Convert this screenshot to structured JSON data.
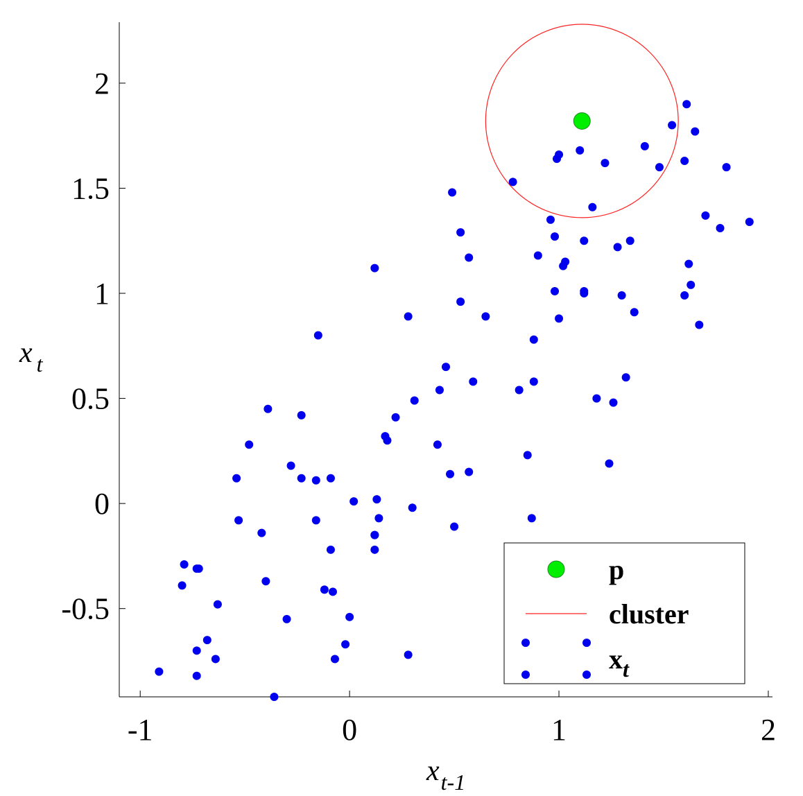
{
  "chart_data": {
    "type": "scatter",
    "title": "",
    "xlabel": "x",
    "xlabel_sub": "t-1",
    "ylabel": "x",
    "ylabel_sub": "t",
    "xlim": [
      -1.1,
      2.02
    ],
    "ylim": [
      -0.92,
      2.29
    ],
    "xticks": [
      -1,
      0,
      1,
      2
    ],
    "xtick_labels": [
      "-1",
      "0",
      "1",
      "2"
    ],
    "yticks": [
      -0.5,
      0,
      0.5,
      1,
      1.5,
      2
    ],
    "ytick_labels": [
      "-0.5",
      "0",
      "0.5",
      "1",
      "1.5",
      "2"
    ],
    "grid": false,
    "legend_position": "bottom-right",
    "colors": {
      "xt": "#0000ee",
      "p": "#00ee00",
      "cluster": "#ff2222"
    },
    "legend": [
      {
        "key": "p",
        "label": "p",
        "marker": "green-circle"
      },
      {
        "key": "cluster",
        "label": "cluster",
        "marker": "red-line"
      },
      {
        "key": "xt",
        "label": "x",
        "sub": "t",
        "marker": "blue-dots"
      }
    ],
    "p": {
      "x": 1.11,
      "y": 1.82
    },
    "cluster": {
      "cx": 1.11,
      "cy": 1.82,
      "r": 0.46
    },
    "series": [
      {
        "key": "xt",
        "x": [
          -0.91,
          -0.73,
          -0.73,
          -0.68,
          -0.73,
          -0.64,
          -0.63,
          -0.79,
          -0.8,
          -0.72,
          -0.54,
          -0.53,
          -0.48,
          -0.42,
          -0.4,
          -0.39,
          -0.36,
          -0.3,
          -0.28,
          -0.23,
          -0.23,
          -0.16,
          -0.16,
          -0.15,
          -0.12,
          -0.09,
          -0.09,
          -0.08,
          -0.07,
          -0.02,
          0.0,
          0.02,
          0.12,
          0.12,
          0.12,
          0.13,
          0.14,
          0.12,
          0.17,
          0.18,
          0.22,
          0.28,
          0.28,
          0.3,
          0.31,
          0.42,
          0.43,
          0.46,
          0.48,
          0.49,
          0.5,
          0.53,
          0.53,
          0.57,
          0.57,
          0.59,
          0.65,
          0.78,
          0.81,
          0.85,
          0.87,
          0.88,
          0.88,
          0.9,
          0.96,
          0.98,
          0.98,
          1.0,
          1.0,
          1.02,
          1.03,
          1.1,
          1.12,
          1.12,
          1.12,
          1.16,
          1.18,
          1.24,
          1.26,
          1.28,
          1.3,
          1.32,
          1.34,
          1.36,
          1.41,
          1.48,
          1.54,
          1.6,
          1.6,
          1.61,
          1.62,
          1.63,
          1.65,
          1.67,
          1.7,
          1.77,
          1.8,
          1.91,
          0.99,
          1.22
        ],
        "y": [
          -0.8,
          -0.82,
          -0.7,
          -0.65,
          -0.31,
          -0.74,
          -0.48,
          -0.29,
          -0.39,
          -0.31,
          0.12,
          -0.08,
          0.28,
          -0.14,
          -0.37,
          0.45,
          -0.92,
          -0.55,
          0.18,
          0.12,
          0.42,
          0.11,
          -0.08,
          0.8,
          -0.41,
          -0.22,
          0.12,
          -0.42,
          -0.74,
          -0.67,
          -0.54,
          0.01,
          1.12,
          -0.22,
          -0.15,
          0.02,
          -0.07,
          -0.15,
          0.32,
          0.3,
          0.41,
          0.89,
          -0.72,
          -0.02,
          0.49,
          0.28,
          0.54,
          0.65,
          0.14,
          1.48,
          -0.11,
          1.29,
          0.96,
          1.17,
          0.15,
          0.58,
          0.89,
          1.53,
          0.54,
          0.23,
          -0.07,
          0.78,
          0.58,
          1.18,
          1.35,
          1.01,
          1.27,
          0.88,
          1.66,
          1.13,
          1.15,
          1.68,
          1.01,
          1.0,
          1.25,
          1.41,
          0.5,
          0.19,
          0.48,
          1.22,
          0.99,
          0.6,
          1.25,
          0.91,
          1.7,
          1.6,
          1.8,
          0.99,
          1.63,
          1.9,
          1.14,
          1.04,
          1.77,
          0.85,
          1.37,
          1.31,
          1.6,
          1.34,
          1.64,
          1.62
        ]
      }
    ]
  }
}
